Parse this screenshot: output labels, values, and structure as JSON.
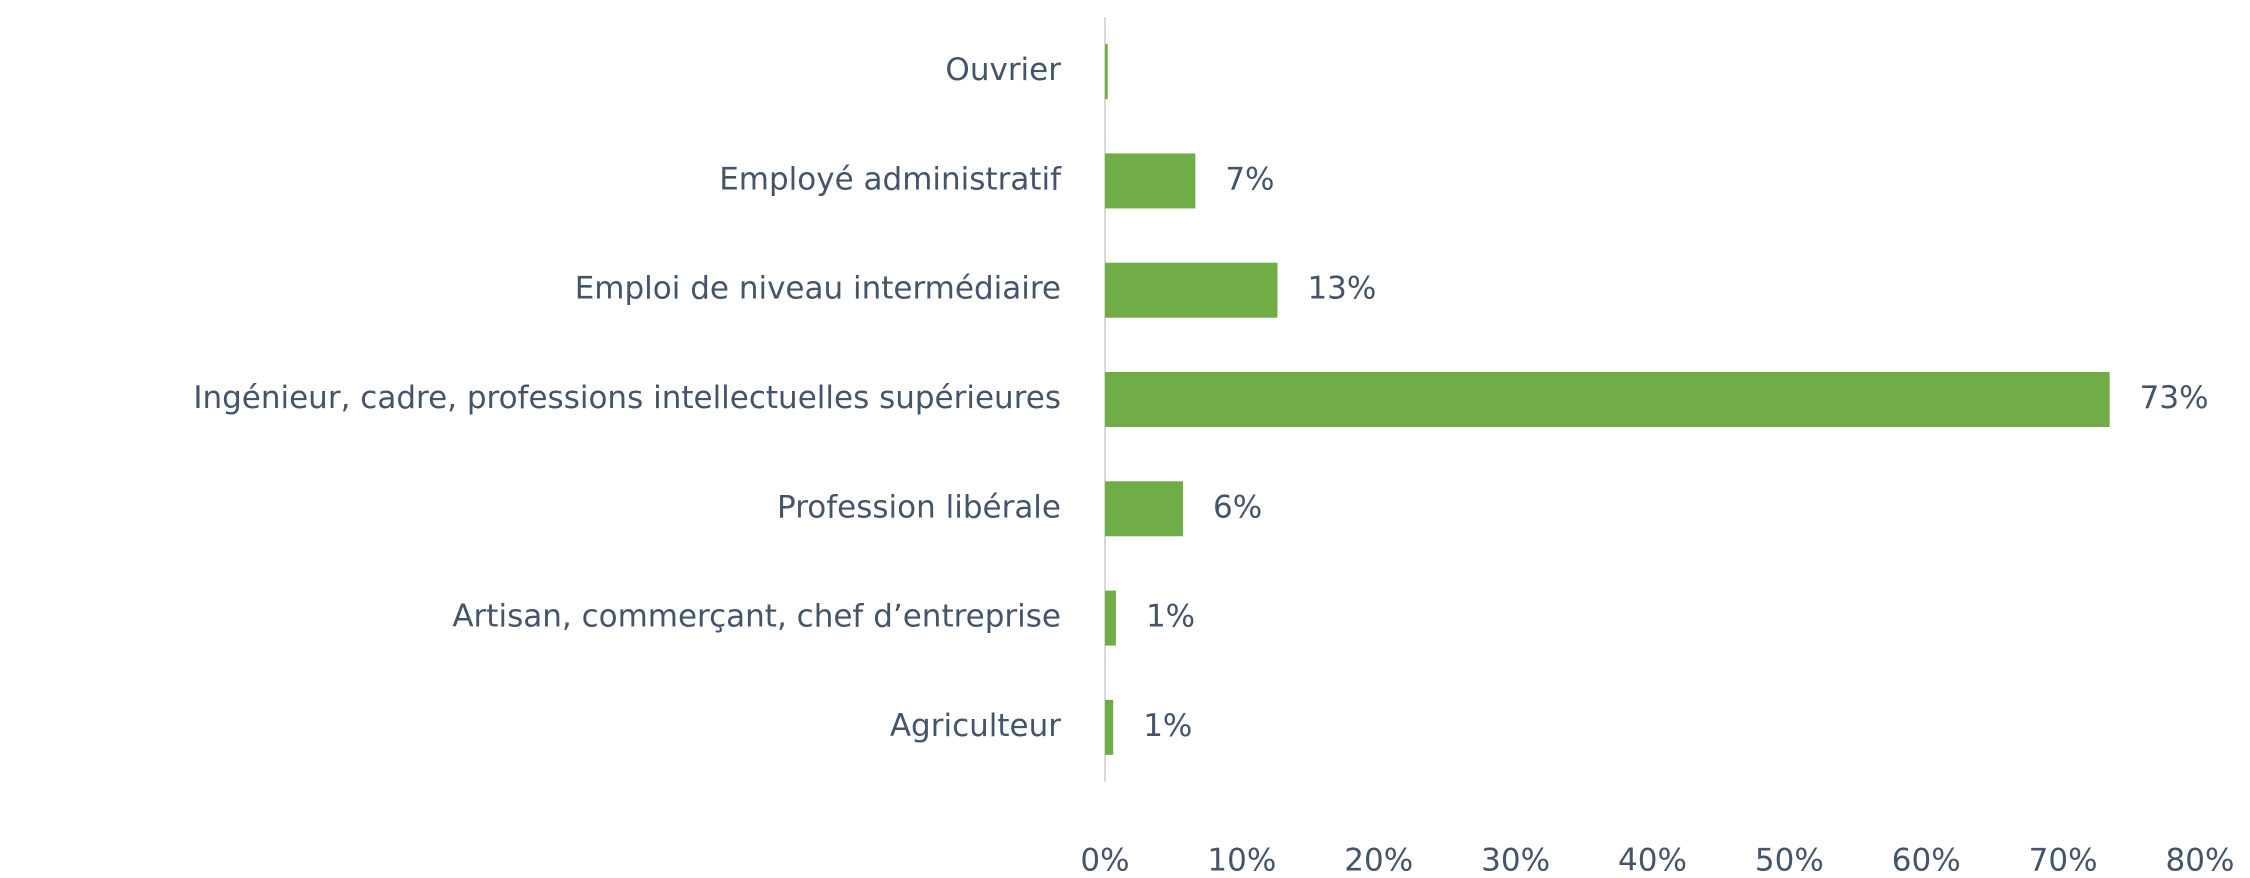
{
  "chart_data": {
    "type": "hbar",
    "categories": [
      "Ouvrier",
      "Employé administratif",
      "Emploi de niveau intermédiaire",
      "Ingénieur, cadre, professions intellectuelles supérieures",
      "Profession libérale",
      "Artisan, commerçant, chef d’entreprise",
      "Agriculteur"
    ],
    "values": [
      0.2,
      6.6,
      12.6,
      73.4,
      5.7,
      0.8,
      0.6
    ],
    "value_labels": [
      null,
      "7%",
      "13%",
      "73%",
      "6%",
      "1%",
      "1%"
    ],
    "color": "#70ad47",
    "xlim": [
      0,
      80
    ],
    "xticks": [
      {
        "value": 0,
        "label": "0%"
      },
      {
        "value": 10,
        "label": "10%"
      },
      {
        "value": 20,
        "label": "20%"
      },
      {
        "value": 30,
        "label": "30%"
      },
      {
        "value": 40,
        "label": "40%"
      },
      {
        "value": 50,
        "label": "50%"
      },
      {
        "value": 60,
        "label": "60%"
      },
      {
        "value": 70,
        "label": "70%"
      },
      {
        "value": 80,
        "label": "80%"
      }
    ]
  }
}
